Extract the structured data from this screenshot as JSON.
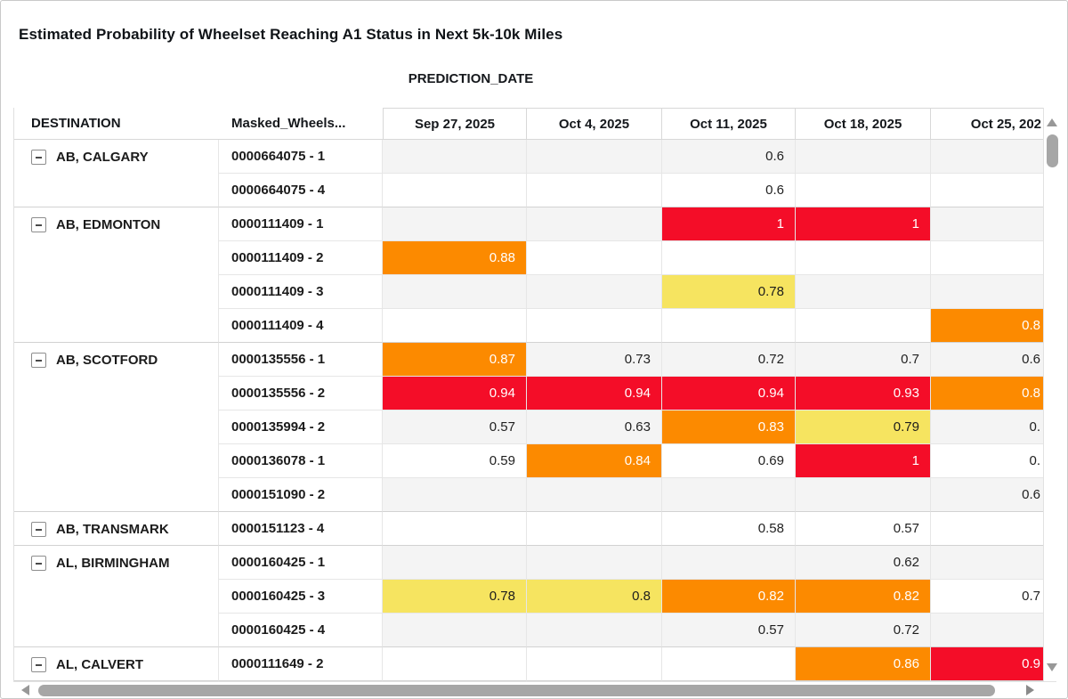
{
  "chart_data": {
    "type": "heatmap",
    "title": "Estimated Probability of Wheelset Reaching A1 Status in Next 5k-10k Miles",
    "column_group_label": "PREDICTION_DATE",
    "row_headers": [
      "DESTINATION",
      "Masked_Wheels..."
    ],
    "columns": [
      "Sep 27, 2025",
      "Oct 4, 2025",
      "Oct 11, 2025",
      "Oct 18, 2025",
      "Oct 25, 202"
    ],
    "groups": [
      {
        "destination": "AB, CALGARY",
        "rows": [
          {
            "id": "0000664075 - 1",
            "values": [
              {
                "v": "",
                "c": "none"
              },
              {
                "v": "",
                "c": "none"
              },
              {
                "v": "0.6",
                "c": "none"
              },
              {
                "v": "",
                "c": "none"
              },
              {
                "v": "",
                "c": "none"
              }
            ]
          },
          {
            "id": "0000664075 - 4",
            "values": [
              {
                "v": "",
                "c": "none"
              },
              {
                "v": "",
                "c": "none"
              },
              {
                "v": "0.6",
                "c": "none"
              },
              {
                "v": "",
                "c": "none"
              },
              {
                "v": "",
                "c": "none"
              }
            ]
          }
        ]
      },
      {
        "destination": "AB, EDMONTON",
        "rows": [
          {
            "id": "0000111409 - 1",
            "values": [
              {
                "v": "",
                "c": "none"
              },
              {
                "v": "",
                "c": "none"
              },
              {
                "v": "1",
                "c": "red"
              },
              {
                "v": "1",
                "c": "red"
              },
              {
                "v": "",
                "c": "none"
              }
            ]
          },
          {
            "id": "0000111409 - 2",
            "values": [
              {
                "v": "0.88",
                "c": "orange"
              },
              {
                "v": "",
                "c": "none"
              },
              {
                "v": "",
                "c": "none"
              },
              {
                "v": "",
                "c": "none"
              },
              {
                "v": "",
                "c": "none"
              }
            ]
          },
          {
            "id": "0000111409 - 3",
            "values": [
              {
                "v": "",
                "c": "none"
              },
              {
                "v": "",
                "c": "none"
              },
              {
                "v": "0.78",
                "c": "yellow"
              },
              {
                "v": "",
                "c": "none"
              },
              {
                "v": "",
                "c": "none"
              }
            ]
          },
          {
            "id": "0000111409 - 4",
            "values": [
              {
                "v": "",
                "c": "none"
              },
              {
                "v": "",
                "c": "none"
              },
              {
                "v": "",
                "c": "none"
              },
              {
                "v": "",
                "c": "none"
              },
              {
                "v": "0.8",
                "c": "orange"
              }
            ]
          }
        ]
      },
      {
        "destination": "AB, SCOTFORD",
        "rows": [
          {
            "id": "0000135556 - 1",
            "values": [
              {
                "v": "0.87",
                "c": "orange"
              },
              {
                "v": "0.73",
                "c": "none"
              },
              {
                "v": "0.72",
                "c": "none"
              },
              {
                "v": "0.7",
                "c": "none"
              },
              {
                "v": "0.6",
                "c": "none"
              }
            ]
          },
          {
            "id": "0000135556 - 2",
            "values": [
              {
                "v": "0.94",
                "c": "red"
              },
              {
                "v": "0.94",
                "c": "red"
              },
              {
                "v": "0.94",
                "c": "red"
              },
              {
                "v": "0.93",
                "c": "red"
              },
              {
                "v": "0.8",
                "c": "orange"
              }
            ]
          },
          {
            "id": "0000135994 - 2",
            "values": [
              {
                "v": "0.57",
                "c": "none"
              },
              {
                "v": "0.63",
                "c": "none"
              },
              {
                "v": "0.83",
                "c": "orange"
              },
              {
                "v": "0.79",
                "c": "yellow"
              },
              {
                "v": "0.",
                "c": "none"
              }
            ]
          },
          {
            "id": "0000136078 - 1",
            "values": [
              {
                "v": "0.59",
                "c": "none"
              },
              {
                "v": "0.84",
                "c": "orange"
              },
              {
                "v": "0.69",
                "c": "none"
              },
              {
                "v": "1",
                "c": "red"
              },
              {
                "v": "0.",
                "c": "none"
              }
            ]
          },
          {
            "id": "0000151090 - 2",
            "values": [
              {
                "v": "",
                "c": "none"
              },
              {
                "v": "",
                "c": "none"
              },
              {
                "v": "",
                "c": "none"
              },
              {
                "v": "",
                "c": "none"
              },
              {
                "v": "0.6",
                "c": "none"
              }
            ]
          }
        ]
      },
      {
        "destination": "AB, TRANSMARK",
        "rows": [
          {
            "id": "0000151123 - 4",
            "values": [
              {
                "v": "",
                "c": "none"
              },
              {
                "v": "",
                "c": "none"
              },
              {
                "v": "0.58",
                "c": "none"
              },
              {
                "v": "0.57",
                "c": "none"
              },
              {
                "v": "",
                "c": "none"
              }
            ]
          }
        ]
      },
      {
        "destination": "AL, BIRMINGHAM",
        "rows": [
          {
            "id": "0000160425 - 1",
            "values": [
              {
                "v": "",
                "c": "none"
              },
              {
                "v": "",
                "c": "none"
              },
              {
                "v": "",
                "c": "none"
              },
              {
                "v": "0.62",
                "c": "none"
              },
              {
                "v": "",
                "c": "none"
              }
            ]
          },
          {
            "id": "0000160425 - 3",
            "values": [
              {
                "v": "0.78",
                "c": "yellow"
              },
              {
                "v": "0.8",
                "c": "yellow"
              },
              {
                "v": "0.82",
                "c": "orange"
              },
              {
                "v": "0.82",
                "c": "orange"
              },
              {
                "v": "0.7",
                "c": "none"
              }
            ]
          },
          {
            "id": "0000160425 - 4",
            "values": [
              {
                "v": "",
                "c": "none"
              },
              {
                "v": "",
                "c": "none"
              },
              {
                "v": "0.57",
                "c": "none"
              },
              {
                "v": "0.72",
                "c": "none"
              },
              {
                "v": "",
                "c": "none"
              }
            ]
          }
        ]
      },
      {
        "destination": "AL, CALVERT",
        "rows": [
          {
            "id": "0000111649 - 2",
            "values": [
              {
                "v": "",
                "c": "none"
              },
              {
                "v": "",
                "c": "none"
              },
              {
                "v": "",
                "c": "none"
              },
              {
                "v": "0.86",
                "c": "orange"
              },
              {
                "v": "0.9",
                "c": "red"
              }
            ]
          }
        ]
      }
    ]
  },
  "colors": {
    "red": "#F40D28",
    "orange": "#FC8A00",
    "yellow": "#F6E460",
    "stripe": "#F4F4F4",
    "heat_text_light": "#FFFFFF",
    "heat_text_dark": "#1C1C1C"
  }
}
